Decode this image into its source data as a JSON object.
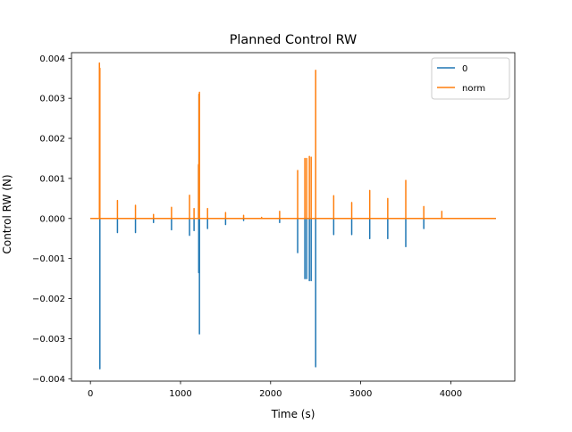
{
  "chart_data": {
    "type": "line",
    "title": "Planned Control RW",
    "xlabel": "Time (s)",
    "ylabel": "Control RW (N)",
    "xlim": [
      -210,
      4710
    ],
    "ylim": [
      -0.00406,
      0.00414
    ],
    "xticks": [
      0,
      1000,
      2000,
      3000,
      4000
    ],
    "xtick_labels": [
      "0",
      "1000",
      "2000",
      "3000",
      "4000"
    ],
    "yticks": [
      -0.004,
      -0.003,
      -0.002,
      -0.001,
      0.0,
      0.001,
      0.002,
      0.003,
      0.004
    ],
    "ytick_labels": [
      "−0.004",
      "−0.003",
      "−0.002",
      "−0.001",
      "0.000",
      "0.001",
      "0.002",
      "0.003",
      "0.004"
    ],
    "grid": false,
    "legend_position": "top-right",
    "baseline": [
      0,
      4500
    ],
    "series": [
      {
        "name": "0",
        "color": "#1f77b4",
        "spikes": [
          [
            100,
            0.0038
          ],
          [
            105,
            -0.00375
          ],
          [
            300,
            -0.00035
          ],
          [
            500,
            -0.00035
          ],
          [
            700,
            -0.0001
          ],
          [
            900,
            -0.00028
          ],
          [
            1100,
            -0.00042
          ],
          [
            1150,
            -0.0003
          ],
          [
            1200,
            0.00133
          ],
          [
            1202,
            -0.00135
          ],
          [
            1205,
            0.0031
          ],
          [
            1210,
            -0.00288
          ],
          [
            1300,
            -0.00025
          ],
          [
            1500,
            -0.00015
          ],
          [
            1700,
            -5e-05
          ],
          [
            2100,
            -0.0001
          ],
          [
            2300,
            -0.00085
          ],
          [
            2380,
            -0.0015
          ],
          [
            2400,
            -0.0015
          ],
          [
            2430,
            -0.00155
          ],
          [
            2450,
            -0.00155
          ],
          [
            2500,
            -0.0037
          ],
          [
            2700,
            -0.0004
          ],
          [
            2900,
            -0.0004
          ],
          [
            3100,
            -0.0005
          ],
          [
            3300,
            -0.0005
          ],
          [
            3500,
            -0.0007
          ],
          [
            3700,
            -0.00025
          ]
        ]
      },
      {
        "name": "norm",
        "color": "#ff7f0e",
        "spikes": [
          [
            100,
            0.00388
          ],
          [
            105,
            0.00375
          ],
          [
            300,
            0.00045
          ],
          [
            500,
            0.00033
          ],
          [
            700,
            0.0001
          ],
          [
            900,
            0.00028
          ],
          [
            1100,
            0.00058
          ],
          [
            1150,
            0.00025
          ],
          [
            1200,
            0.00135
          ],
          [
            1205,
            0.0031
          ],
          [
            1210,
            0.00315
          ],
          [
            1300,
            0.00025
          ],
          [
            1500,
            0.00015
          ],
          [
            1700,
            8e-05
          ],
          [
            1900,
            3e-05
          ],
          [
            2100,
            0.00018
          ],
          [
            2300,
            0.0012
          ],
          [
            2380,
            0.0015
          ],
          [
            2400,
            0.0015
          ],
          [
            2430,
            0.00155
          ],
          [
            2450,
            0.00153
          ],
          [
            2500,
            0.0037
          ],
          [
            2700,
            0.00057
          ],
          [
            2900,
            0.0004
          ],
          [
            3100,
            0.0007
          ],
          [
            3300,
            0.0005
          ],
          [
            3500,
            0.00095
          ],
          [
            3700,
            0.0003
          ],
          [
            3900,
            0.00018
          ]
        ]
      }
    ]
  }
}
